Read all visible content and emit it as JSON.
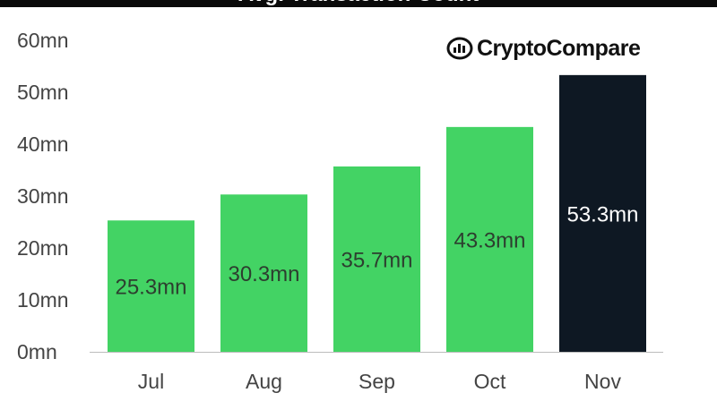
{
  "title_partial": "Avg. Transaction Count",
  "brand": {
    "name": "CryptoCompare",
    "icon": "cryptocompare-logo-icon"
  },
  "colors": {
    "bar_default": "#43d364",
    "bar_highlight": "#0e1823",
    "label_on_light": "#2d3e2f",
    "label_on_dark": "#ffffff",
    "axis_text": "#444444"
  },
  "chart_data": {
    "type": "bar",
    "categories": [
      "Jul",
      "Aug",
      "Sep",
      "Oct",
      "Nov"
    ],
    "values": [
      25.3,
      30.3,
      35.7,
      43.3,
      53.3
    ],
    "data_labels": [
      "25.3mn",
      "30.3mn",
      "35.7mn",
      "43.3mn",
      "53.3mn"
    ],
    "highlight_index": 4,
    "yticks": [
      0,
      10,
      20,
      30,
      40,
      50,
      60
    ],
    "ytick_labels": [
      "0mn",
      "10mn",
      "20mn",
      "30mn",
      "40mn",
      "50mn",
      "60mn"
    ],
    "ylim": [
      0,
      60
    ],
    "xlabel": "",
    "ylabel": "",
    "grid": false,
    "legend": "none"
  }
}
